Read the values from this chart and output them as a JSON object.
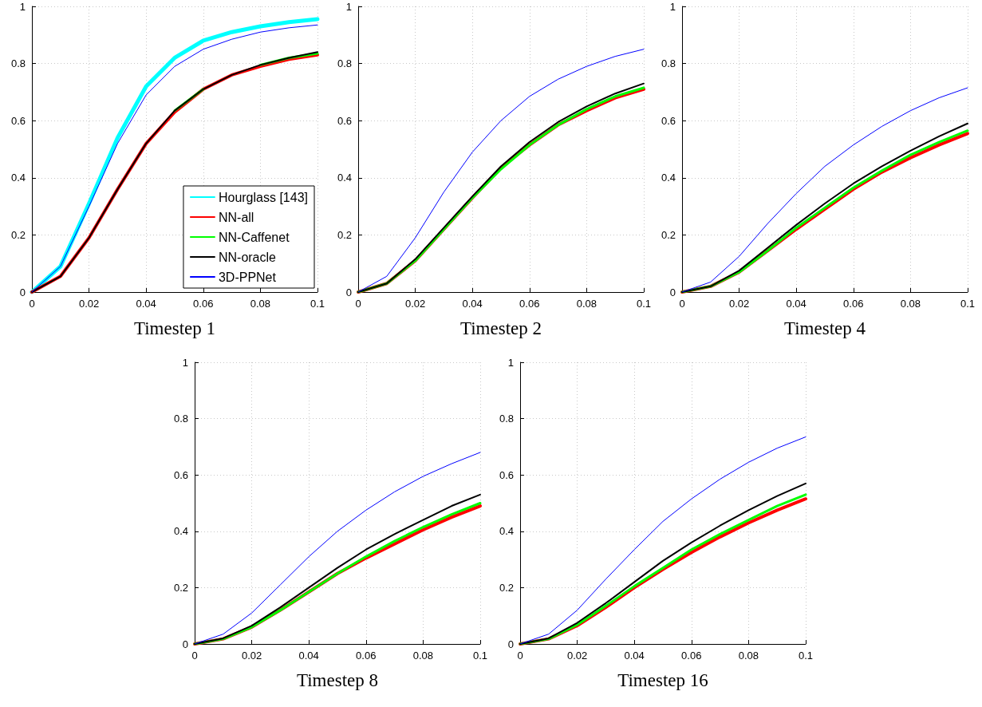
{
  "chart_data": [
    {
      "type": "line",
      "xlabel": "Timestep 1",
      "x": [
        0,
        0.01,
        0.02,
        0.03,
        0.04,
        0.05,
        0.06,
        0.07,
        0.08,
        0.09,
        0.1
      ],
      "xlim": [
        0,
        0.1
      ],
      "xticks": [
        0,
        0.02,
        0.04,
        0.06,
        0.08,
        0.1
      ],
      "ylim": [
        0,
        1
      ],
      "yticks": [
        0,
        0.2,
        0.4,
        0.6,
        0.8,
        1
      ],
      "grid": true,
      "legend": "bottom right",
      "marker": "none",
      "line_style": "solid",
      "series": [
        {
          "name": "Hourglass [143]",
          "color": "#00ffff",
          "values": [
            0,
            0.09,
            0.31,
            0.54,
            0.72,
            0.82,
            0.88,
            0.91,
            0.93,
            0.945,
            0.955
          ]
        },
        {
          "name": "NN-all",
          "color": "#ff0000",
          "values": [
            0,
            0.055,
            0.19,
            0.36,
            0.52,
            0.63,
            0.71,
            0.76,
            0.79,
            0.815,
            0.83
          ]
        },
        {
          "name": "NN-Caffenet",
          "color": "#00ff00",
          "values": [
            null,
            null,
            null,
            null,
            null,
            0.635,
            0.71,
            null,
            0.795,
            0.82,
            0.835
          ]
        },
        {
          "name": "NN-oracle",
          "color": "#000000",
          "values": [
            0,
            0.055,
            0.19,
            0.36,
            0.52,
            0.635,
            0.71,
            0.76,
            0.795,
            0.82,
            0.84
          ]
        },
        {
          "name": "3D-PPNet",
          "color": "#0000ff",
          "values": [
            0,
            0.09,
            0.3,
            0.52,
            0.69,
            0.79,
            0.85,
            0.885,
            0.91,
            0.925,
            0.935
          ]
        }
      ]
    },
    {
      "type": "line",
      "xlabel": "Timestep 2",
      "x": [
        0,
        0.01,
        0.02,
        0.03,
        0.04,
        0.05,
        0.06,
        0.07,
        0.08,
        0.09,
        0.1
      ],
      "xlim": [
        0,
        0.1
      ],
      "xticks": [
        0,
        0.02,
        0.04,
        0.06,
        0.08,
        0.1
      ],
      "ylim": [
        0,
        1
      ],
      "yticks": [
        0,
        0.2,
        0.4,
        0.6,
        0.8,
        1
      ],
      "grid": true,
      "marker": "none",
      "line_style": "solid",
      "series": [
        {
          "color": "#ff0000",
          "values": [
            0,
            0.03,
            0.11,
            0.22,
            0.33,
            0.435,
            0.515,
            0.585,
            0.635,
            0.68,
            0.71
          ]
        },
        {
          "color": "#00ff00",
          "values": [
            0,
            0.03,
            0.11,
            0.22,
            0.33,
            0.43,
            0.515,
            0.585,
            0.64,
            0.685,
            0.715
          ]
        },
        {
          "color": "#000000",
          "values": [
            0,
            0.03,
            0.115,
            0.225,
            0.335,
            0.44,
            0.525,
            0.595,
            0.65,
            0.695,
            0.73
          ]
        },
        {
          "color": "#0000ff",
          "values": [
            0,
            0.055,
            0.19,
            0.35,
            0.49,
            0.6,
            0.685,
            0.745,
            0.79,
            0.825,
            0.85
          ]
        }
      ]
    },
    {
      "type": "line",
      "xlabel": "Timestep 4",
      "x": [
        0,
        0.01,
        0.02,
        0.03,
        0.04,
        0.05,
        0.06,
        0.07,
        0.08,
        0.09,
        0.1
      ],
      "xlim": [
        0,
        0.1
      ],
      "xticks": [
        0,
        0.02,
        0.04,
        0.06,
        0.08,
        0.1
      ],
      "ylim": [
        0,
        1
      ],
      "yticks": [
        0,
        0.2,
        0.4,
        0.6,
        0.8,
        1
      ],
      "grid": true,
      "marker": "none",
      "line_style": "solid",
      "series": [
        {
          "color": "#ff0000",
          "values": [
            0,
            0.02,
            0.07,
            0.145,
            0.22,
            0.29,
            0.36,
            0.42,
            0.47,
            0.515,
            0.555
          ]
        },
        {
          "color": "#00ff00",
          "values": [
            0,
            0.02,
            0.07,
            0.145,
            0.225,
            0.295,
            0.365,
            0.425,
            0.48,
            0.525,
            0.565
          ]
        },
        {
          "color": "#000000",
          "values": [
            0,
            0.02,
            0.075,
            0.155,
            0.235,
            0.31,
            0.38,
            0.44,
            0.495,
            0.545,
            0.59
          ]
        },
        {
          "color": "#0000ff",
          "values": [
            0,
            0.035,
            0.125,
            0.24,
            0.345,
            0.44,
            0.515,
            0.58,
            0.635,
            0.68,
            0.715
          ]
        }
      ]
    },
    {
      "type": "line",
      "xlabel": "Timestep 8",
      "x": [
        0,
        0.01,
        0.02,
        0.03,
        0.04,
        0.05,
        0.06,
        0.07,
        0.08,
        0.09,
        0.1
      ],
      "xlim": [
        0,
        0.1
      ],
      "xticks": [
        0,
        0.02,
        0.04,
        0.06,
        0.08,
        0.1
      ],
      "ylim": [
        0,
        1
      ],
      "yticks": [
        0,
        0.2,
        0.4,
        0.6,
        0.8,
        1
      ],
      "grid": true,
      "marker": "none",
      "line_style": "solid",
      "series": [
        {
          "color": "#ff0000",
          "values": [
            0,
            0.018,
            0.06,
            0.12,
            0.185,
            0.25,
            0.305,
            0.355,
            0.405,
            0.45,
            0.49
          ]
        },
        {
          "color": "#00ff00",
          "values": [
            0,
            0.018,
            0.06,
            0.12,
            0.185,
            0.25,
            0.31,
            0.365,
            0.415,
            0.46,
            0.5
          ]
        },
        {
          "color": "#000000",
          "values": [
            0,
            0.02,
            0.065,
            0.13,
            0.2,
            0.27,
            0.335,
            0.39,
            0.44,
            0.49,
            0.53
          ]
        },
        {
          "color": "#0000ff",
          "values": [
            0,
            0.035,
            0.11,
            0.21,
            0.31,
            0.4,
            0.475,
            0.54,
            0.595,
            0.64,
            0.68
          ]
        }
      ]
    },
    {
      "type": "line",
      "xlabel": "Timestep 16",
      "x": [
        0,
        0.01,
        0.02,
        0.03,
        0.04,
        0.05,
        0.06,
        0.07,
        0.08,
        0.09,
        0.1
      ],
      "xlim": [
        0,
        0.1
      ],
      "xticks": [
        0,
        0.02,
        0.04,
        0.06,
        0.08,
        0.1
      ],
      "ylim": [
        0,
        1
      ],
      "yticks": [
        0,
        0.2,
        0.4,
        0.6,
        0.8,
        1
      ],
      "grid": true,
      "marker": "none",
      "line_style": "solid",
      "series": [
        {
          "color": "#ff0000",
          "values": [
            0,
            0.018,
            0.065,
            0.13,
            0.2,
            0.265,
            0.325,
            0.38,
            0.43,
            0.475,
            0.515
          ]
        },
        {
          "color": "#00ff00",
          "values": [
            0,
            0.018,
            0.068,
            0.135,
            0.205,
            0.27,
            0.335,
            0.39,
            0.44,
            0.49,
            0.53
          ]
        },
        {
          "color": "#000000",
          "values": [
            0,
            0.02,
            0.075,
            0.145,
            0.22,
            0.295,
            0.36,
            0.42,
            0.475,
            0.525,
            0.57
          ]
        },
        {
          "color": "#0000ff",
          "values": [
            0,
            0.035,
            0.12,
            0.23,
            0.335,
            0.435,
            0.515,
            0.585,
            0.645,
            0.695,
            0.735
          ]
        }
      ]
    }
  ]
}
